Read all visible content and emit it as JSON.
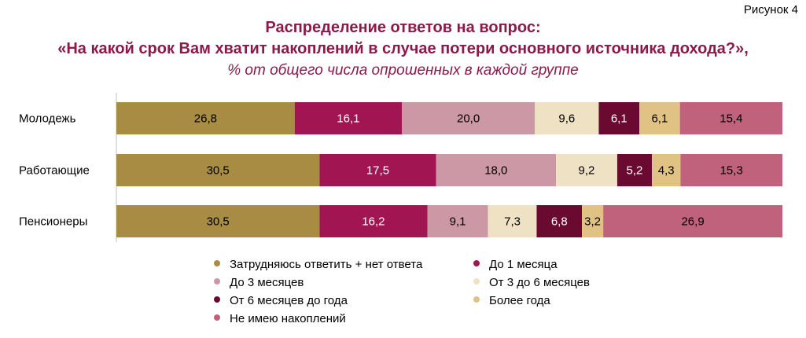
{
  "figure_label": "Рисунок 4",
  "title_line1": "Распределение ответов на вопрос:",
  "title_line2": "«На какой срок Вам хватит накоплений в случае потери основного источника дохода?»,",
  "subtitle": "% от общего числа опрошенных в каждой группе",
  "colors": {
    "accent": "#8b1a4a"
  },
  "chart_data": {
    "type": "bar",
    "orientation": "horizontal",
    "stacked": true,
    "normalized": true,
    "categories": [
      "Молодежь",
      "Работающие",
      "Пенсионеры"
    ],
    "series": [
      {
        "name": "Затрудняюсь ответить + нет ответа",
        "color": "#a88c43",
        "values": [
          26.8,
          30.5,
          30.5
        ]
      },
      {
        "name": "До 1 месяца",
        "color": "#a01552",
        "values": [
          16.1,
          17.5,
          16.2
        ]
      },
      {
        "name": "До 3 месяцев",
        "color": "#cd98a5",
        "values": [
          20.0,
          18.0,
          9.1
        ]
      },
      {
        "name": "От 3 до 6 месяцев",
        "color": "#efe2c4",
        "values": [
          9.6,
          9.2,
          7.3
        ]
      },
      {
        "name": "От 6 месяцев до года",
        "color": "#6b0a30",
        "values": [
          6.1,
          5.2,
          6.8
        ]
      },
      {
        "name": "Более года",
        "color": "#e0c285",
        "values": [
          6.1,
          4.3,
          3.2
        ]
      },
      {
        "name": "Не имею накоплений",
        "color": "#c0627c",
        "values": [
          15.4,
          15.3,
          26.9
        ]
      }
    ],
    "value_labels": [
      [
        "26,8",
        "16,1",
        "20,0",
        "9,6",
        "6,1",
        "6,1",
        "15,4"
      ],
      [
        "30,5",
        "17,5",
        "18,0",
        "9,2",
        "5,2",
        "4,3",
        "15,3"
      ],
      [
        "30,5",
        "16,2",
        "9,1",
        "7,3",
        "6,8",
        "3,2",
        "26,9"
      ]
    ],
    "label_colors": [
      "#000000",
      "#ffffff",
      "#000000",
      "#000000",
      "#ffffff",
      "#000000",
      "#000000"
    ],
    "legend_position": "bottom",
    "grid": false
  }
}
